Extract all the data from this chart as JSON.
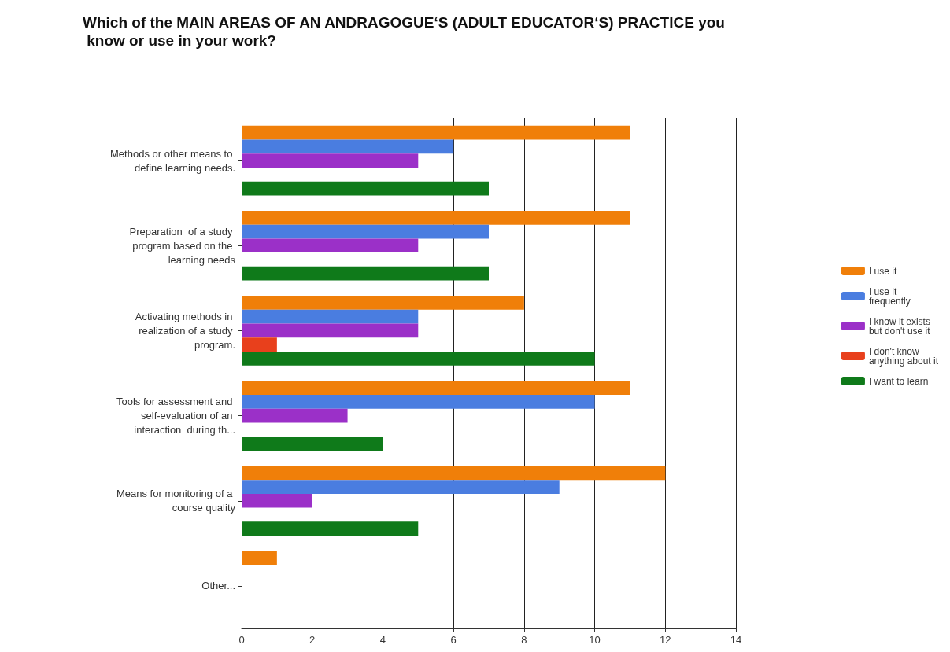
{
  "chart_data": {
    "type": "bar",
    "orientation": "horizontal",
    "title": "Which of the MAIN AREAS OF AN ANDRAGOGUE‘S (ADULT EDUCATOR‘S) PRACTICE you know or use in your work?",
    "categories": [
      "Methods or other means to define learning needs.",
      "Preparation  of a study program based on the learning needs",
      "Activating methods in realization of a study program.",
      "Tools for assessment and self-evaluation of an interaction  during th...",
      "Means for monitoring of a course quality",
      "Other..."
    ],
    "series": [
      {
        "name": "I use it",
        "color": "#f07f09",
        "values": [
          11,
          11,
          8,
          11,
          12,
          1
        ]
      },
      {
        "name": "I use it frequently",
        "color": "#4a7de0",
        "values": [
          6,
          7,
          5,
          10,
          9,
          0
        ]
      },
      {
        "name": "I know it exists but don't use it",
        "color": "#9b30c8",
        "values": [
          5,
          5,
          5,
          3,
          2,
          0
        ]
      },
      {
        "name": "I don't know anything about it",
        "color": "#e8401c",
        "values": [
          0,
          0,
          1,
          0,
          0,
          0
        ]
      },
      {
        "name": "I want to learn",
        "color": "#0f7a1a",
        "values": [
          7,
          7,
          10,
          4,
          5,
          0
        ]
      }
    ],
    "xlim": [
      0,
      14
    ],
    "xticks": [
      0,
      2,
      4,
      6,
      8,
      10,
      12,
      14
    ],
    "grid": "x",
    "legend": "right"
  }
}
